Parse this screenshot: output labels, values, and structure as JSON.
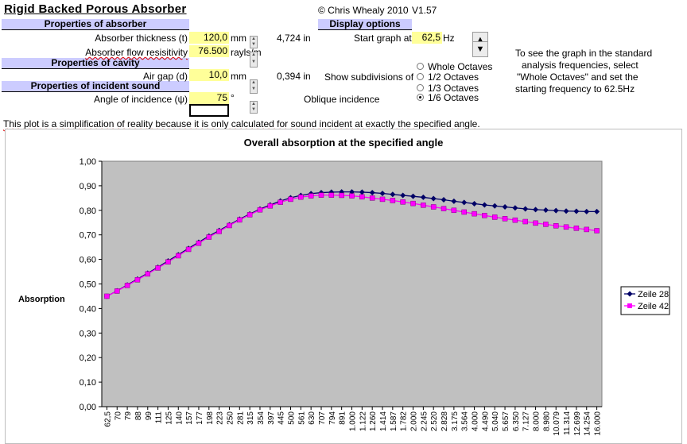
{
  "app": {
    "title": "Rigid Backed Porous Absorber",
    "copyright": "© Chris Whealy 2010",
    "version": "V1.57"
  },
  "sections": {
    "absorber": "Properties of absorber",
    "cavity": "Properties of cavity",
    "incident": "Properties of incident sound",
    "display": "Display options"
  },
  "fields": {
    "thickness": {
      "label": "Absorber thickness (t)",
      "value": "120,0",
      "unit": "mm",
      "converted": "4,724 in"
    },
    "resistivity": {
      "label": "Absorber flow resisitivity",
      "value": "76.500",
      "unit": "rayls/m"
    },
    "airgap": {
      "label": "Air gap (d)",
      "value": "10,0",
      "unit": "mm",
      "converted": "0,394 in"
    },
    "angle": {
      "label": "Angle of incidence (ψ)",
      "value": "75",
      "unit": "°",
      "note": "Oblique incidence"
    },
    "start_graph": {
      "label": "Start graph at",
      "value": "62,5",
      "unit": "Hz"
    },
    "subdivisions_label": "Show subdivisions of"
  },
  "options": [
    {
      "label": "Whole Octaves",
      "selected": false
    },
    {
      "label": "1/2 Octaves",
      "selected": false
    },
    {
      "label": "1/3 Octaves",
      "selected": false
    },
    {
      "label": "1/6 Octaves",
      "selected": true
    }
  ],
  "hint": [
    "To see the graph in the standard",
    "analysis frequencies, select",
    "\"Whole Octaves\" and set the",
    "starting frequency to 62.5Hz"
  ],
  "note": "This plot is a simplification of reality because it is only calculated for sound incident at exactly the specified angle.",
  "chart_data": {
    "type": "line",
    "title": "Overall absorption at the specified angle",
    "ylabel": "Absorption",
    "xlabel": "",
    "ylim": [
      0,
      1
    ],
    "yticks": [
      "0,00",
      "0,10",
      "0,20",
      "0,30",
      "0,40",
      "0,50",
      "0,60",
      "0,70",
      "0,80",
      "0,90",
      "1,00"
    ],
    "categories": [
      "62,5",
      "70",
      "79",
      "88",
      "99",
      "111",
      "125",
      "140",
      "157",
      "177",
      "198",
      "223",
      "250",
      "281",
      "315",
      "354",
      "397",
      "445",
      "500",
      "561",
      "630",
      "707",
      "794",
      "891",
      "1.000",
      "1.122",
      "1.260",
      "1.414",
      "1.587",
      "1.782",
      "2.000",
      "2.245",
      "2.520",
      "2.828",
      "3.175",
      "3.564",
      "4.000",
      "4.490",
      "5.040",
      "5.657",
      "6.350",
      "7.127",
      "8.000",
      "8.980",
      "10.079",
      "11.314",
      "12.699",
      "14.254",
      "16.000"
    ],
    "legend_position": "right",
    "plot_bg": "#c0c0c0",
    "series": [
      {
        "name": "Zeile 28",
        "color": "#000066",
        "marker": "diamond",
        "values": [
          0.45,
          0.472,
          0.496,
          0.52,
          0.544,
          0.568,
          0.594,
          0.619,
          0.645,
          0.67,
          0.695,
          0.718,
          0.741,
          0.764,
          0.785,
          0.805,
          0.822,
          0.838,
          0.851,
          0.861,
          0.868,
          0.872,
          0.874,
          0.875,
          0.875,
          0.874,
          0.872,
          0.869,
          0.865,
          0.861,
          0.857,
          0.853,
          0.848,
          0.843,
          0.837,
          0.832,
          0.827,
          0.822,
          0.818,
          0.814,
          0.81,
          0.806,
          0.803,
          0.801,
          0.799,
          0.797,
          0.796,
          0.795,
          0.795
        ]
      },
      {
        "name": "Zeile 42",
        "color": "#ff00ff",
        "marker": "square",
        "values": [
          0.45,
          0.471,
          0.494,
          0.517,
          0.541,
          0.565,
          0.59,
          0.615,
          0.641,
          0.666,
          0.691,
          0.714,
          0.738,
          0.761,
          0.782,
          0.802,
          0.818,
          0.833,
          0.845,
          0.854,
          0.859,
          0.862,
          0.862,
          0.861,
          0.859,
          0.855,
          0.85,
          0.845,
          0.84,
          0.834,
          0.828,
          0.821,
          0.814,
          0.807,
          0.8,
          0.793,
          0.786,
          0.779,
          0.772,
          0.766,
          0.76,
          0.754,
          0.748,
          0.743,
          0.737,
          0.732,
          0.727,
          0.722,
          0.717
        ]
      }
    ]
  }
}
